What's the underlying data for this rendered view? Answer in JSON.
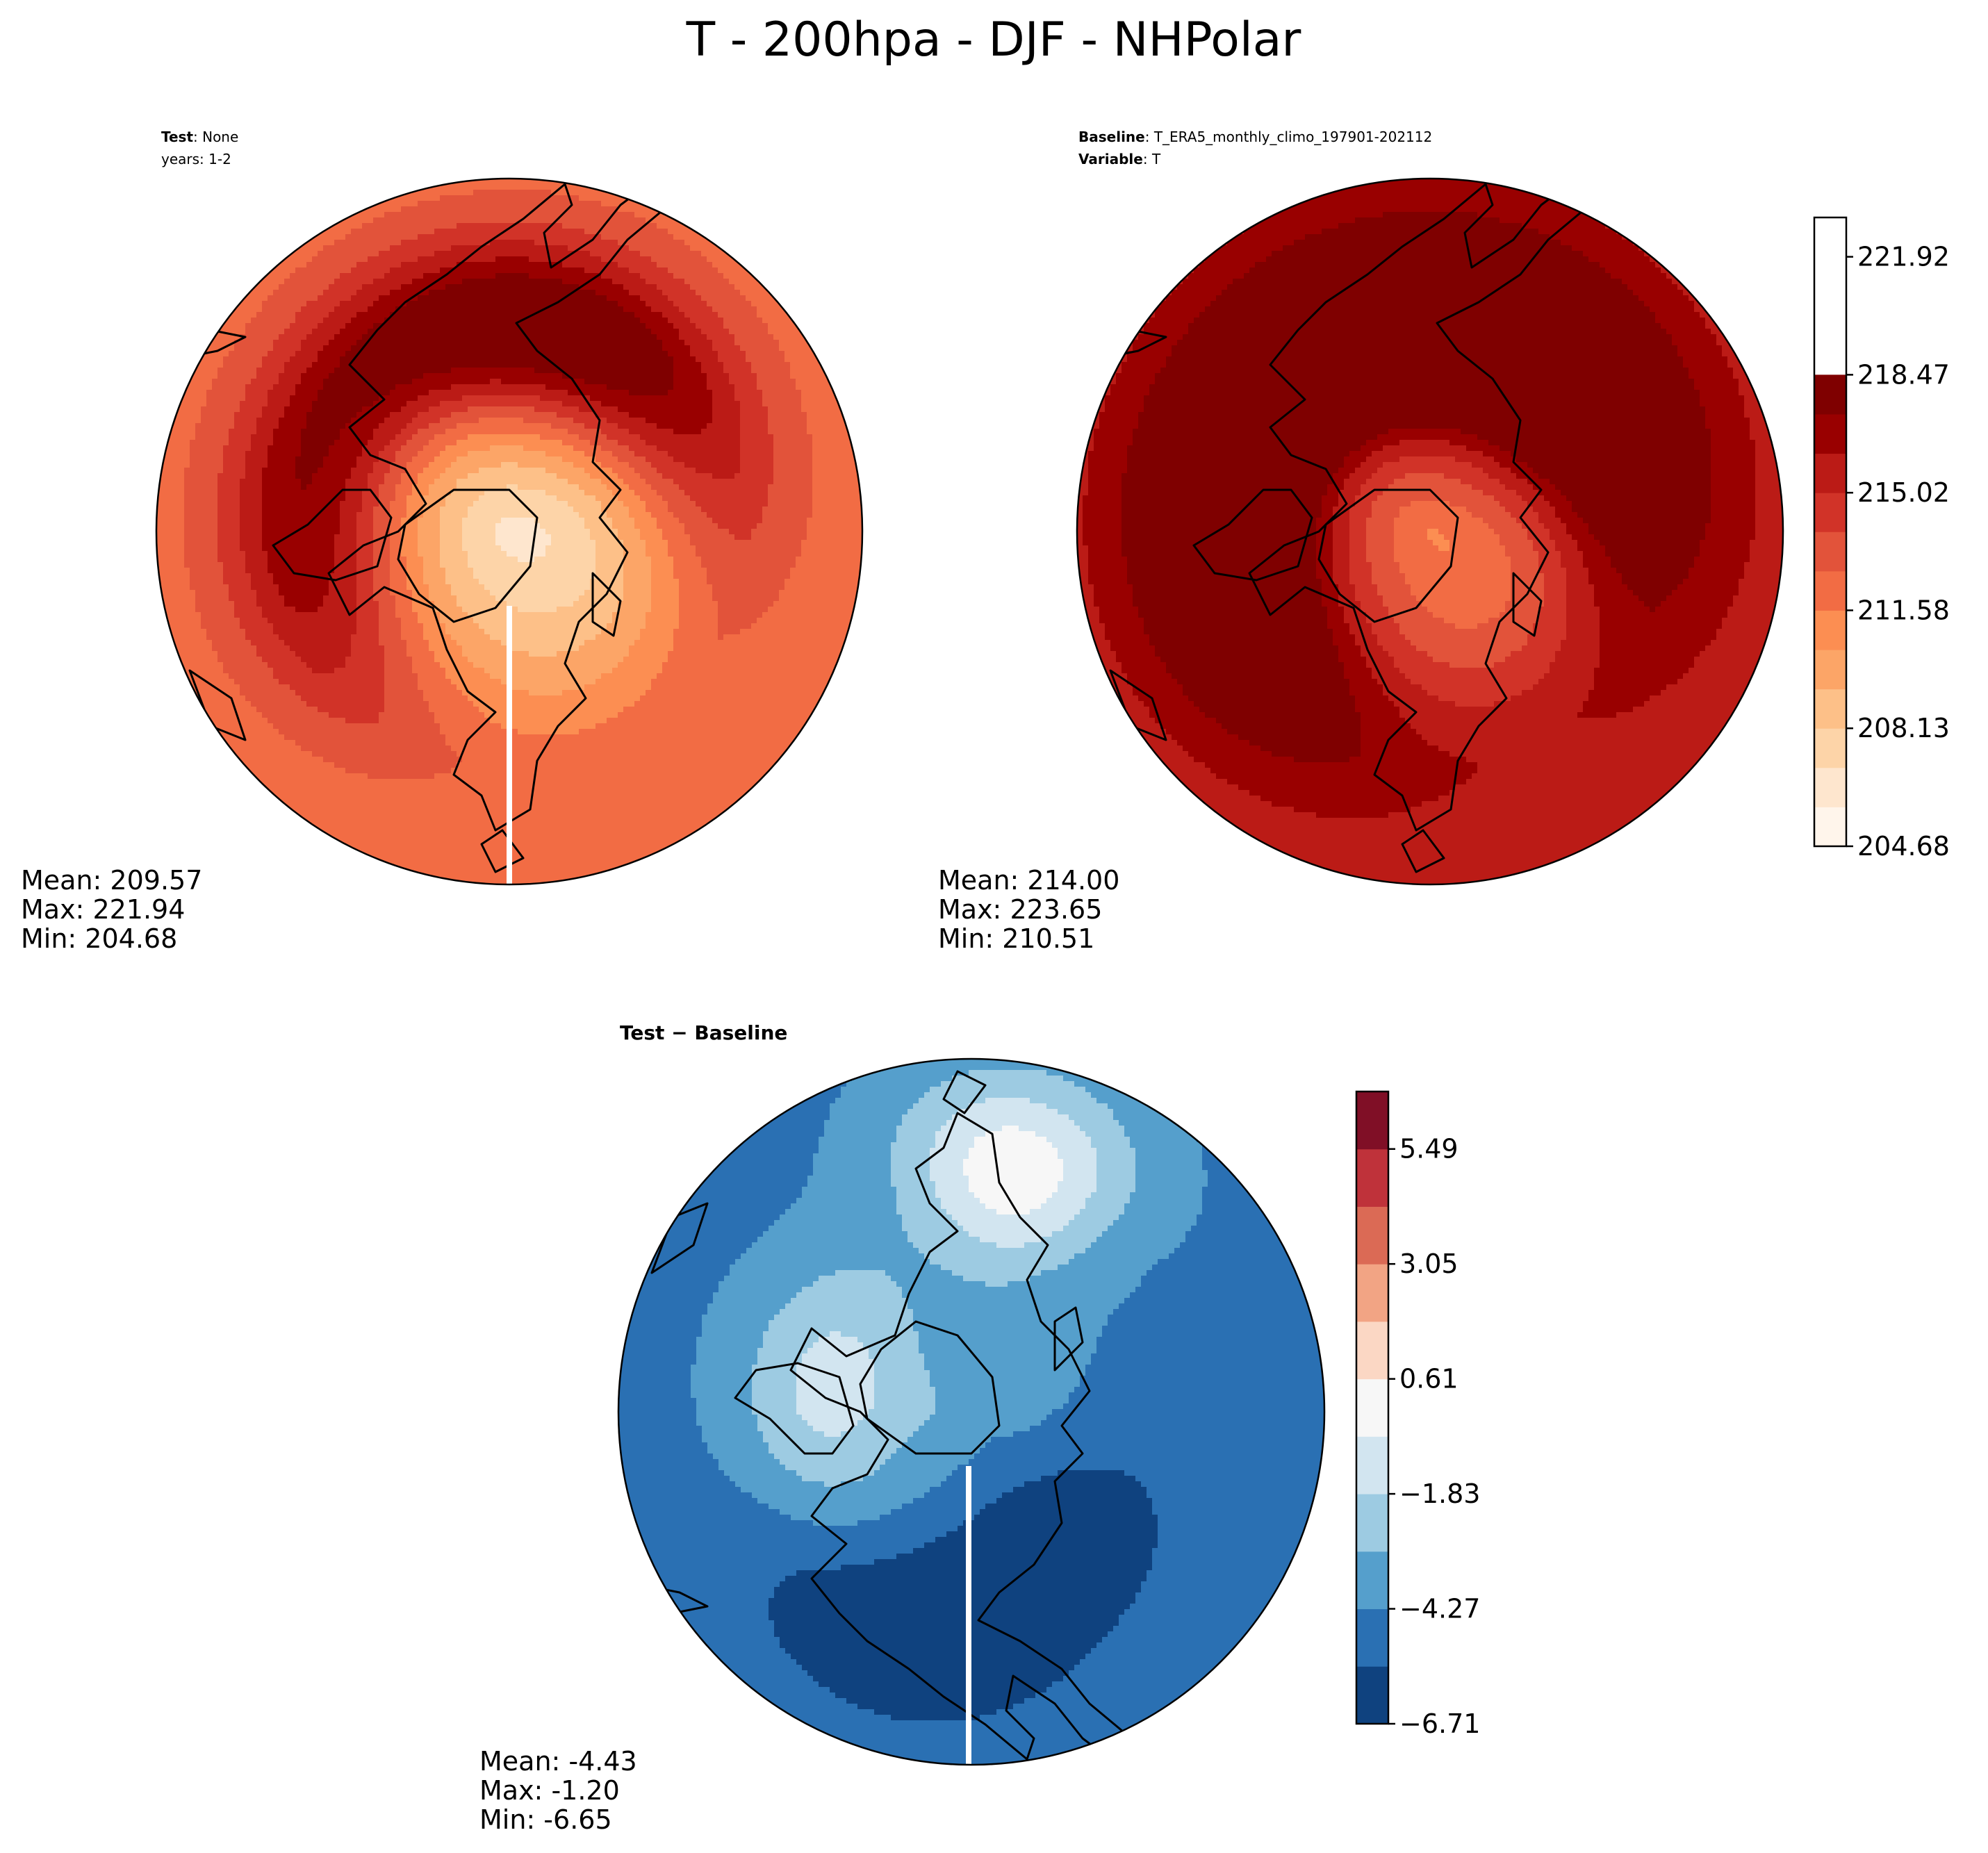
{
  "title": "T - 200hpa - DJF - NHPolar",
  "panels": {
    "test": {
      "label_bold": "Test",
      "label_rest": ": None",
      "years": "years: 1-2",
      "stats": {
        "mean": "Mean: 209.57",
        "max": "Max: 221.94",
        "min": "Min: 204.68"
      },
      "field": {
        "base": 211.9,
        "pole": 206.5,
        "lobes": [
          {
            "lon": 180,
            "amp": 6.0,
            "width": 55,
            "lat": 55
          },
          {
            "lon": -80,
            "amp": 4.5,
            "width": 40,
            "lat": 58
          },
          {
            "lon": 140,
            "amp": 3.0,
            "width": 50,
            "lat": 62
          },
          {
            "lon": 90,
            "amp": -1.5,
            "width": 50,
            "lat": 70
          }
        ]
      }
    },
    "baseline": {
      "label_bold": "Baseline",
      "label_rest": ": T_ERA5_monthly_climo_197901-202112",
      "variable_bold": "Variable",
      "variable_rest": ": T",
      "stats": {
        "mean": "Mean: 214.00",
        "max": "Max: 223.65",
        "min": "Min: 210.51"
      },
      "field": {
        "base": 215.6,
        "pole": 211.6,
        "lobes": [
          {
            "lon": 180,
            "amp": 6.5,
            "width": 60,
            "lat": 55
          },
          {
            "lon": -80,
            "amp": 5.5,
            "width": 45,
            "lat": 58
          },
          {
            "lon": 140,
            "amp": 3.5,
            "width": 55,
            "lat": 62
          },
          {
            "lon": 60,
            "amp": -1.5,
            "width": 50,
            "lat": 70
          }
        ]
      }
    },
    "diff": {
      "label": "Test − Baseline",
      "stats": {
        "mean": "Mean: -4.43",
        "max": "Max: -1.20",
        "min": "Min: -6.65"
      },
      "field": {
        "base": -4.6,
        "pole": -3.6,
        "lobes": [
          {
            "lon": -100,
            "amp": 2.9,
            "width": 35,
            "lat": 65
          },
          {
            "lon": 170,
            "amp": 4.8,
            "width": 18,
            "lat": 48
          },
          {
            "lon": 30,
            "amp": -2.2,
            "width": 35,
            "lat": 65
          },
          {
            "lon": -20,
            "amp": -1.8,
            "width": 30,
            "lat": 50
          }
        ]
      }
    }
  },
  "colorbars": {
    "abs": {
      "levels": [
        204.68,
        205.83,
        206.98,
        208.13,
        209.28,
        210.43,
        211.58,
        212.73,
        213.88,
        215.02,
        216.17,
        217.32,
        218.47,
        219.62,
        220.77,
        221.92,
        223.07
      ],
      "tick_labels": [
        "204.68",
        "208.13",
        "211.58",
        "215.02",
        "218.47",
        "221.92"
      ],
      "colors": [
        "#fff5eb",
        "#fee6ce",
        "#fdd4a8",
        "#fdc088",
        "#fca567",
        "#fc8e52",
        "#f26c44",
        "#e2533a",
        "#d13328",
        "#bb1b16",
        "#990000",
        "#7f0000"
      ]
    },
    "diff": {
      "levels": [
        -6.71,
        -5.49,
        -4.27,
        -3.05,
        -1.83,
        -0.61,
        0.61,
        1.83,
        3.05,
        4.27,
        5.49,
        6.71
      ],
      "tick_labels": [
        "−6.71",
        "−4.27",
        "−1.83",
        "0.61",
        "3.05",
        "5.49"
      ],
      "colors": [
        "#0f427f",
        "#2a70b3",
        "#559fcc",
        "#9dcbe2",
        "#d2e5f0",
        "#f7f7f7",
        "#fbd7c4",
        "#f2a484",
        "#db6a55",
        "#bf323a",
        "#800f26"
      ]
    }
  }
}
